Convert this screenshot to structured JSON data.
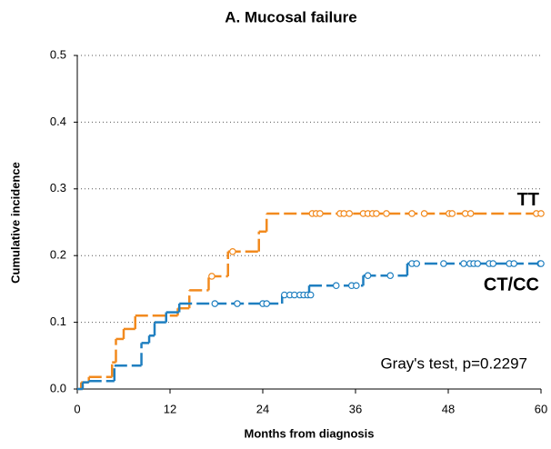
{
  "chart_data": {
    "type": "step",
    "title": "A. Mucosal failure",
    "xlabel": "Months from diagnosis",
    "ylabel": "Cumulative incidence",
    "annotation": "Gray's test, p=0.2297",
    "xlim": [
      0,
      60
    ],
    "xticks": [
      0,
      12,
      24,
      36,
      48,
      60
    ],
    "ylim": [
      0,
      0.5
    ],
    "yticks": [
      {
        "value": 0,
        "label": "0.0"
      },
      0.1,
      0.2,
      0.3,
      0.4,
      0.5
    ],
    "grid": true,
    "series": [
      {
        "name": "TT",
        "color": "#f28a1e",
        "x": [
          0,
          0.5,
          1.5,
          4.5,
          5,
          6,
          7.5,
          13,
          14.5,
          17,
          19.5,
          23.5,
          24.5,
          60
        ],
        "values": [
          0,
          0.01,
          0.018,
          0.04,
          0.075,
          0.09,
          0.11,
          0.121,
          0.148,
          0.169,
          0.206,
          0.236,
          0.263,
          0.263
        ],
        "censor_x": [
          17.4,
          20.1,
          30.4,
          30.9,
          31.4,
          34,
          34.5,
          35.2,
          37,
          37.6,
          38.2,
          38.7,
          40,
          43.3,
          44.9,
          48.1,
          48.5,
          50.2,
          50.9,
          59.4,
          60
        ],
        "censor_values": [
          0.169,
          0.206,
          0.263,
          0.263,
          0.263,
          0.263,
          0.263,
          0.263,
          0.263,
          0.263,
          0.263,
          0.263,
          0.263,
          0.263,
          0.263,
          0.263,
          0.263,
          0.263,
          0.263,
          0.263,
          0.263
        ]
      },
      {
        "name": "CT/CC",
        "color": "#1f7fc0",
        "x": [
          0,
          0.7,
          1.5,
          4.8,
          8.3,
          9.3,
          10,
          11.5,
          13.2,
          26.5,
          30,
          37,
          42.7,
          60
        ],
        "values": [
          0,
          0.01,
          0.012,
          0.035,
          0.069,
          0.08,
          0.1,
          0.115,
          0.128,
          0.141,
          0.155,
          0.17,
          0.188,
          0.188
        ],
        "censor_x": [
          17.8,
          20.7,
          24,
          24.5,
          26.8,
          27.5,
          28.1,
          28.8,
          29.3,
          29.8,
          30.2,
          33.5,
          35.5,
          36.1,
          37.6,
          40.5,
          43.3,
          43.9,
          47.4,
          50,
          50.8,
          51.3,
          51.8,
          53.3,
          53.8,
          55.9,
          56.5,
          59.9,
          60
        ],
        "censor_values": [
          0.128,
          0.128,
          0.128,
          0.128,
          0.141,
          0.141,
          0.141,
          0.141,
          0.141,
          0.141,
          0.141,
          0.155,
          0.155,
          0.155,
          0.17,
          0.17,
          0.188,
          0.188,
          0.188,
          0.188,
          0.188,
          0.188,
          0.188,
          0.188,
          0.188,
          0.188,
          0.188,
          0.188,
          0.188
        ]
      }
    ]
  }
}
